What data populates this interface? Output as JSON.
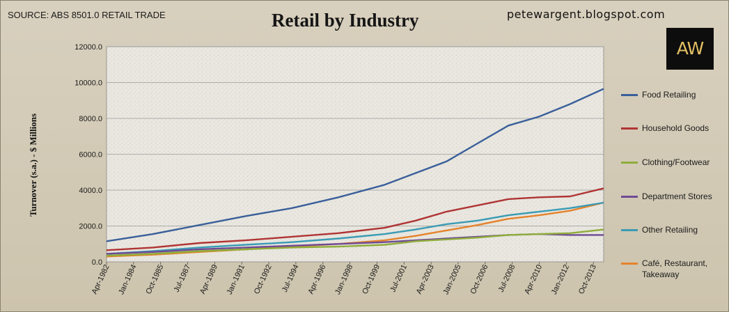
{
  "source": "SOURCE: ABS 8501.0 RETAIL TRADE",
  "blog": "petewargent.blogspot.com",
  "logo_text": "AW",
  "chart_data": {
    "type": "line",
    "title": "Retail by Industry",
    "ylabel": "Turnover (s.a.) - $ Millions",
    "xlabel": "",
    "ylim": [
      0,
      12000
    ],
    "yticks": [
      "0.0",
      "2000.0",
      "4000.0",
      "6000.0",
      "8000.0",
      "10000.0",
      "12000.0"
    ],
    "x_range": [
      "Apr-1982",
      "Jun-2014"
    ],
    "x_tick_labels": [
      "Apr-1982",
      "Jan-1984",
      "Oct-1985",
      "Jul-1987",
      "Apr-1989",
      "Jan-1991",
      "Oct-1992",
      "Jul-1994",
      "Apr-1996",
      "Jan-1998",
      "Oct-1999",
      "Jul-2001",
      "Apr-2003",
      "Jan-2005",
      "Oct-2006",
      "Jul-2008",
      "Apr-2010",
      "Jan-2012",
      "Oct-2013"
    ],
    "grid": "horizontal",
    "legend_position": "right",
    "x_points": [
      "Apr-1982",
      "Apr-1985",
      "Apr-1988",
      "Apr-1991",
      "Apr-1994",
      "Apr-1997",
      "Apr-2000",
      "Apr-2002",
      "Apr-2004",
      "Apr-2006",
      "Apr-2008",
      "Apr-2010",
      "Apr-2012",
      "Jun-2014"
    ],
    "series": [
      {
        "name": "Food Retailing",
        "color": "#3a5f9a",
        "values": [
          1150,
          1550,
          2050,
          2550,
          3000,
          3600,
          4300,
          4950,
          5600,
          6600,
          7600,
          8100,
          8800,
          9650
        ]
      },
      {
        "name": "Household Goods",
        "color": "#b03434",
        "values": [
          650,
          800,
          1050,
          1200,
          1400,
          1600,
          1900,
          2300,
          2800,
          3150,
          3500,
          3600,
          3650,
          4100
        ]
      },
      {
        "name": "Clothing/Footwear",
        "color": "#8fad3a",
        "values": [
          350,
          450,
          600,
          700,
          800,
          850,
          950,
          1150,
          1250,
          1350,
          1500,
          1550,
          1600,
          1800
        ]
      },
      {
        "name": "Department Stores",
        "color": "#6e4a94",
        "values": [
          450,
          550,
          700,
          800,
          900,
          1000,
          1100,
          1200,
          1300,
          1400,
          1500,
          1550,
          1500,
          1500
        ]
      },
      {
        "name": "Other Retailing",
        "color": "#3a9bb5",
        "values": [
          450,
          600,
          800,
          950,
          1100,
          1300,
          1550,
          1800,
          2100,
          2300,
          2600,
          2800,
          3000,
          3300
        ]
      },
      {
        "name": "Café, Restaurant, Takeaway",
        "color": "#e5822b",
        "values": [
          300,
          400,
          550,
          700,
          850,
          1000,
          1200,
          1450,
          1750,
          2050,
          2400,
          2600,
          2850,
          3300
        ]
      }
    ]
  }
}
